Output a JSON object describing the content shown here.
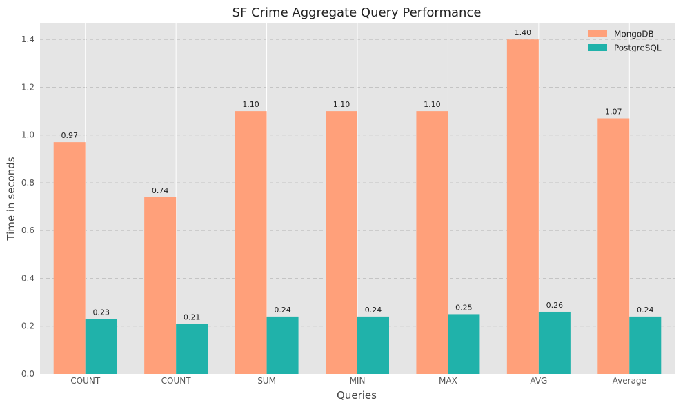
{
  "chart_data": {
    "type": "bar",
    "title": "SF Crime Aggregate Query Performance",
    "xlabel": "Queries",
    "ylabel": "Time in seconds",
    "categories": [
      "COUNT",
      "COUNT",
      "SUM",
      "MIN",
      "MAX",
      "AVG",
      "Average"
    ],
    "series": [
      {
        "name": "MongoDB",
        "color": "#ffa07a",
        "values": [
          0.97,
          0.74,
          1.1,
          1.1,
          1.1,
          1.4,
          1.07
        ]
      },
      {
        "name": "PostgreSQL",
        "color": "#20b2aa",
        "values": [
          0.23,
          0.21,
          0.24,
          0.24,
          0.25,
          0.26,
          0.24
        ]
      }
    ],
    "data_labels": [
      [
        "0.97",
        "0.74",
        "1.10",
        "1.10",
        "1.10",
        "1.40",
        "1.07"
      ],
      [
        "0.23",
        "0.21",
        "0.24",
        "0.24",
        "0.25",
        "0.26",
        "0.24"
      ]
    ],
    "yticks": [
      "0.0",
      "0.2",
      "0.4",
      "0.6",
      "0.8",
      "1.0",
      "1.2",
      "1.4"
    ],
    "ylim": [
      0,
      1.47
    ],
    "grid": true,
    "legend_position": "top-right",
    "background_color": "#e5e5e5"
  }
}
